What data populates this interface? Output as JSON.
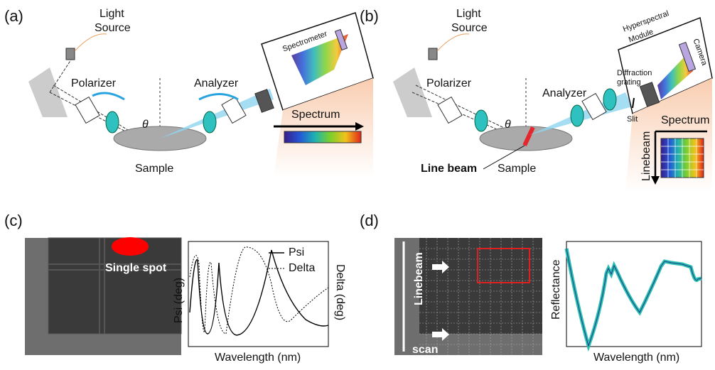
{
  "panel_a": {
    "label": "(a)",
    "light_source": [
      "Light",
      "Source"
    ],
    "polarizer": "Polarizer",
    "analyzer": "Analyzer",
    "spectrometer": "Spectrometer",
    "theta": "θ",
    "spectrum": "Spectrum",
    "sample": "Sample"
  },
  "panel_b": {
    "label": "(b)",
    "light_source": [
      "Light",
      "Source"
    ],
    "polarizer": "Polarizer",
    "analyzer": "Analyzer",
    "module": [
      "Hyperspectral",
      "Module"
    ],
    "grating": [
      "Diffraction",
      "grating"
    ],
    "camera": "Camera",
    "slit": "Slit",
    "theta": "θ",
    "spectrum": "Spectrum",
    "linebeam": "Linebeam",
    "line_beam": "Line beam",
    "sample": "Sample"
  },
  "panel_c": {
    "label": "(c)",
    "spot": "Single spot",
    "y_label": "Psi (deg)",
    "y2_label": "Delta (deg)",
    "x_label": "Wavelength (nm)",
    "legend": [
      "Psi",
      "Delta"
    ]
  },
  "panel_d": {
    "label": "(d)",
    "linebeam": "Linebeam",
    "scan": "scan",
    "y_label": "Reflectance",
    "x_label": "Wavelength (nm)"
  }
}
